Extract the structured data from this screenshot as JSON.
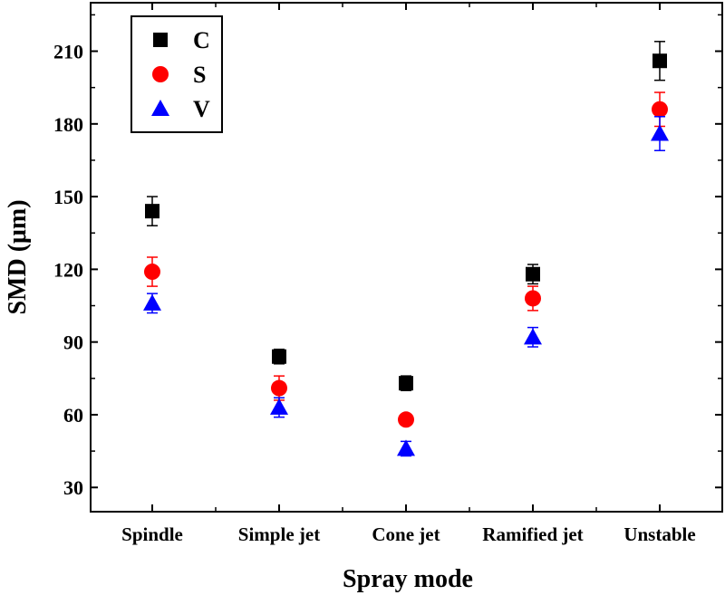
{
  "chart_data": {
    "type": "scatter",
    "xlabel": "Spray mode",
    "ylabel": "SMD (μm)",
    "categories": [
      "Spindle",
      "Simple jet",
      "Cone jet",
      "Ramified jet",
      "Unstable"
    ],
    "ylim": [
      20,
      230
    ],
    "yticks": [
      30,
      60,
      90,
      120,
      150,
      180,
      210
    ],
    "grid": false,
    "legend_position": "top-left",
    "series": [
      {
        "name": "C",
        "marker": "square",
        "color": "#000000",
        "values": [
          144,
          84,
          73,
          118,
          206
        ],
        "errors": [
          6,
          3,
          3,
          4,
          8
        ]
      },
      {
        "name": "S",
        "marker": "circle",
        "color": "#ff0000",
        "values": [
          119,
          71,
          58,
          108,
          186
        ],
        "errors": [
          6,
          5,
          2,
          5,
          7
        ]
      },
      {
        "name": "V",
        "marker": "triangle",
        "color": "#0000ff",
        "values": [
          106,
          63,
          46,
          92,
          176
        ],
        "errors": [
          4,
          4,
          3,
          4,
          7
        ]
      }
    ]
  }
}
